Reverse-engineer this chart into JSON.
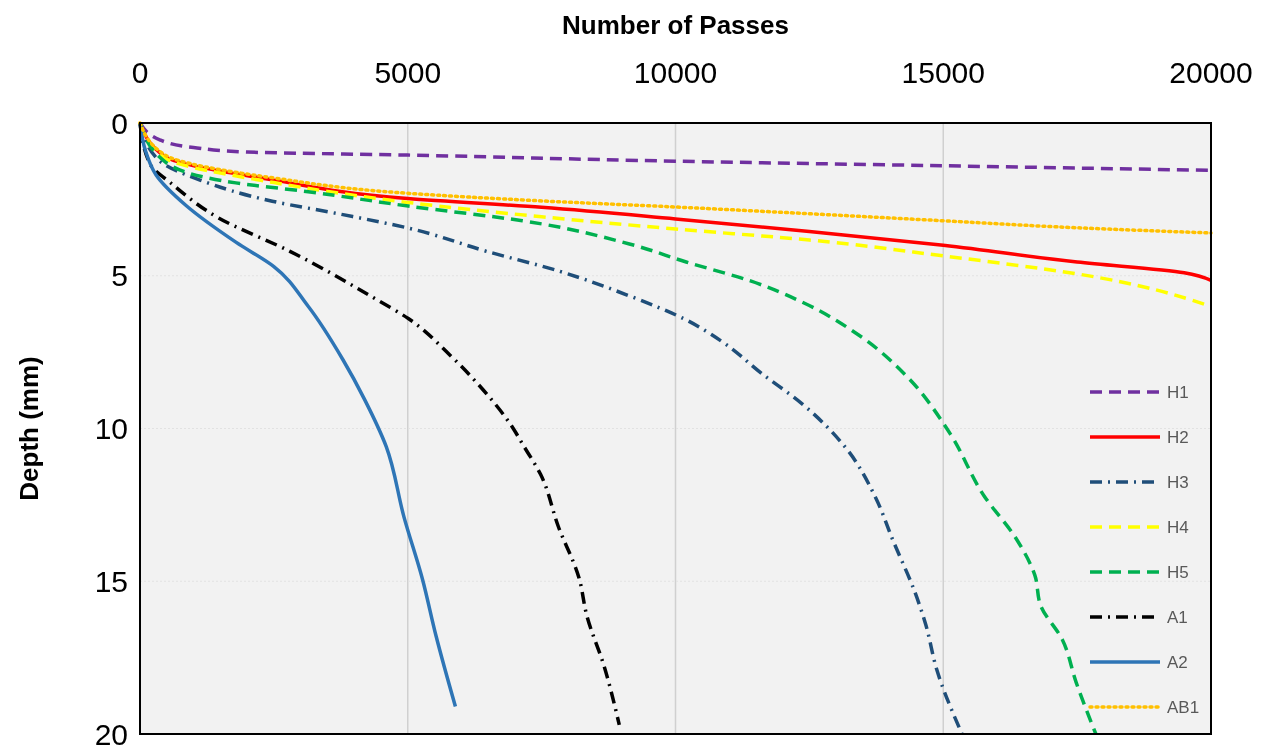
{
  "chart_data": {
    "type": "line",
    "xlabel": "Number of Passes",
    "ylabel": "Depth (mm)",
    "xlim": [
      0,
      20000
    ],
    "xticks": [
      0,
      5000,
      10000,
      15000,
      20000
    ],
    "ylim": [
      20,
      0
    ],
    "yticks": [
      0,
      5,
      10,
      15,
      20
    ],
    "grid": true,
    "legend": "bottom right",
    "marker": "none",
    "series": [
      {
        "name": "H1",
        "color": "#7030a0",
        "line_style": "dashed",
        "x": [
          0,
          370,
          1000,
          2000,
          5000,
          10000,
          15000,
          20000
        ],
        "values": [
          0,
          0.55,
          0.8,
          0.95,
          1.05,
          1.25,
          1.4,
          1.55
        ]
      },
      {
        "name": "H2",
        "color": "#ff0000",
        "line_style": "solid",
        "x": [
          0,
          470,
          2500,
          5000,
          7500,
          10000,
          12500,
          15000,
          17500,
          19500,
          20000
        ],
        "values": [
          0,
          1.1,
          1.87,
          2.47,
          2.76,
          3.14,
          3.55,
          4.0,
          4.55,
          4.9,
          5.15
        ]
      },
      {
        "name": "H3",
        "color": "#1f4e79",
        "line_style": "dashdot",
        "x": [
          0,
          340,
          1120,
          2470,
          3790,
          5010,
          6470,
          7810,
          9140,
          10170,
          10880,
          11610,
          12370,
          13210,
          13720,
          14070,
          14480,
          14670,
          14880,
          15350
        ],
        "values": [
          0,
          1.2,
          1.87,
          2.56,
          3.0,
          3.44,
          4.2,
          4.84,
          5.66,
          6.42,
          7.17,
          8.2,
          9.2,
          10.7,
          12.2,
          13.7,
          15.4,
          16.4,
          17.9,
          20.0
        ]
      },
      {
        "name": "H4",
        "color": "#ffff00",
        "line_style": "dashed",
        "x": [
          0,
          470,
          2500,
          5000,
          7500,
          10000,
          12500,
          15000,
          17500,
          20000
        ],
        "values": [
          0,
          1.15,
          1.95,
          2.6,
          3.07,
          3.47,
          3.83,
          4.35,
          4.94,
          6.0
        ]
      },
      {
        "name": "H5",
        "color": "#00b050",
        "line_style": "dashed",
        "x": [
          0,
          470,
          1790,
          3140,
          5010,
          7140,
          9140,
          10200,
          11400,
          12410,
          13420,
          14350,
          15010,
          15140,
          15760,
          16360,
          16710,
          16820,
          17220,
          17480,
          17850
        ],
        "values": [
          0,
          1.27,
          1.96,
          2.25,
          2.72,
          3.2,
          3.96,
          4.55,
          5.17,
          5.9,
          6.94,
          8.35,
          9.85,
          10.2,
          12.2,
          13.6,
          14.8,
          15.8,
          16.9,
          18.3,
          20.0
        ]
      },
      {
        "name": "A1",
        "color": "#000000",
        "line_style": "dashdot",
        "x": [
          0,
          190,
          600,
          1460,
          2800,
          4340,
          5010,
          5790,
          6340,
          6970,
          7140,
          7480,
          7810,
          8200,
          8340,
          8670,
          8950
        ],
        "values": [
          0,
          1.35,
          2.0,
          3.1,
          4.2,
          5.7,
          6.4,
          7.6,
          8.6,
          10.0,
          10.5,
          11.5,
          13.2,
          14.9,
          16.1,
          17.8,
          19.7
        ]
      },
      {
        "name": "A2",
        "color": "#2e75b6",
        "line_style": "solid",
        "x": [
          0,
          100,
          300,
          860,
          1790,
          2500,
          3140,
          3790,
          4200,
          4600,
          4930,
          5270,
          5530,
          5890
        ],
        "values": [
          0,
          0.9,
          1.7,
          2.7,
          3.9,
          4.7,
          6.0,
          7.75,
          9.07,
          10.6,
          12.9,
          14.9,
          16.8,
          19.1
        ]
      },
      {
        "name": "AB1",
        "color": "#ffc000",
        "line_style": "dotted",
        "x": [
          0,
          470,
          2500,
          5000,
          7500,
          10000,
          12500,
          15000,
          17500,
          20000
        ],
        "values": [
          0,
          1.05,
          1.8,
          2.3,
          2.55,
          2.75,
          2.97,
          3.2,
          3.43,
          3.6
        ]
      }
    ]
  }
}
